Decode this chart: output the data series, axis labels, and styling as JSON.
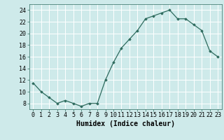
{
  "x": [
    0,
    1,
    2,
    3,
    4,
    5,
    6,
    7,
    8,
    9,
    10,
    11,
    12,
    13,
    14,
    15,
    16,
    17,
    18,
    19,
    20,
    21,
    22,
    23
  ],
  "y": [
    11.5,
    10.0,
    9.0,
    8.0,
    8.5,
    8.0,
    7.5,
    8.0,
    8.0,
    12.0,
    15.0,
    17.5,
    19.0,
    20.5,
    22.5,
    23.0,
    23.5,
    24.0,
    22.5,
    22.5,
    21.5,
    20.5,
    17.0,
    16.0
  ],
  "xlabel": "Humidex (Indice chaleur)",
  "ylim": [
    7,
    25
  ],
  "yticks": [
    8,
    10,
    12,
    14,
    16,
    18,
    20,
    22,
    24
  ],
  "xticks": [
    0,
    1,
    2,
    3,
    4,
    5,
    6,
    7,
    8,
    9,
    10,
    11,
    12,
    13,
    14,
    15,
    16,
    17,
    18,
    19,
    20,
    21,
    22,
    23
  ],
  "line_color": "#2e6b5e",
  "marker": "D",
  "marker_size": 1.8,
  "bg_color": "#ceeaea",
  "grid_color": "#b8d8d8",
  "xlabel_fontsize": 7,
  "tick_fontsize": 6,
  "linewidth": 0.9
}
